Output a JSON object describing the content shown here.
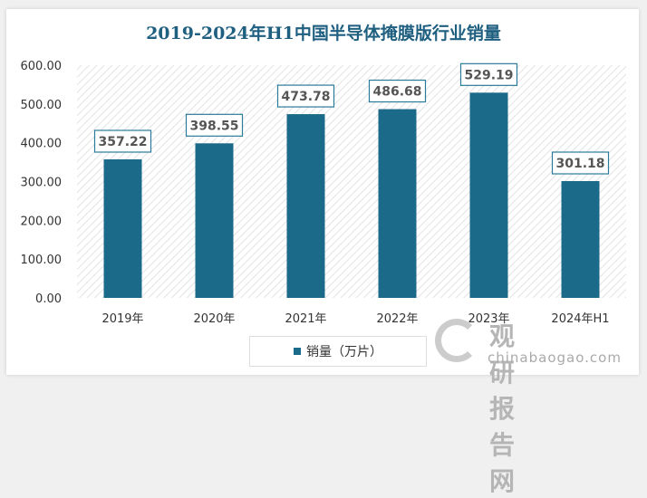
{
  "chart_data": {
    "type": "bar",
    "title": "2019-2024年H1中国半导体掩膜版行业销量",
    "categories": [
      "2019年",
      "2020年",
      "2021年",
      "2022年",
      "2023年",
      "2024年H1"
    ],
    "series": [
      {
        "name": "销量（万片）",
        "values": [
          357.22,
          398.55,
          473.78,
          486.68,
          529.19,
          301.18
        ]
      }
    ],
    "data_labels": [
      "357.22",
      "398.55",
      "473.78",
      "486.68",
      "529.19",
      "301.18"
    ],
    "yticks": [
      "0.00",
      "100.00",
      "200.00",
      "300.00",
      "400.00",
      "500.00",
      "600.00"
    ],
    "ylim": [
      0,
      600
    ],
    "xlabel": "",
    "ylabel": "",
    "legend": "bottom",
    "color": "#1b6a8a"
  },
  "watermark": {
    "cn": "观研报告网",
    "en": "chinabaogao.com"
  }
}
